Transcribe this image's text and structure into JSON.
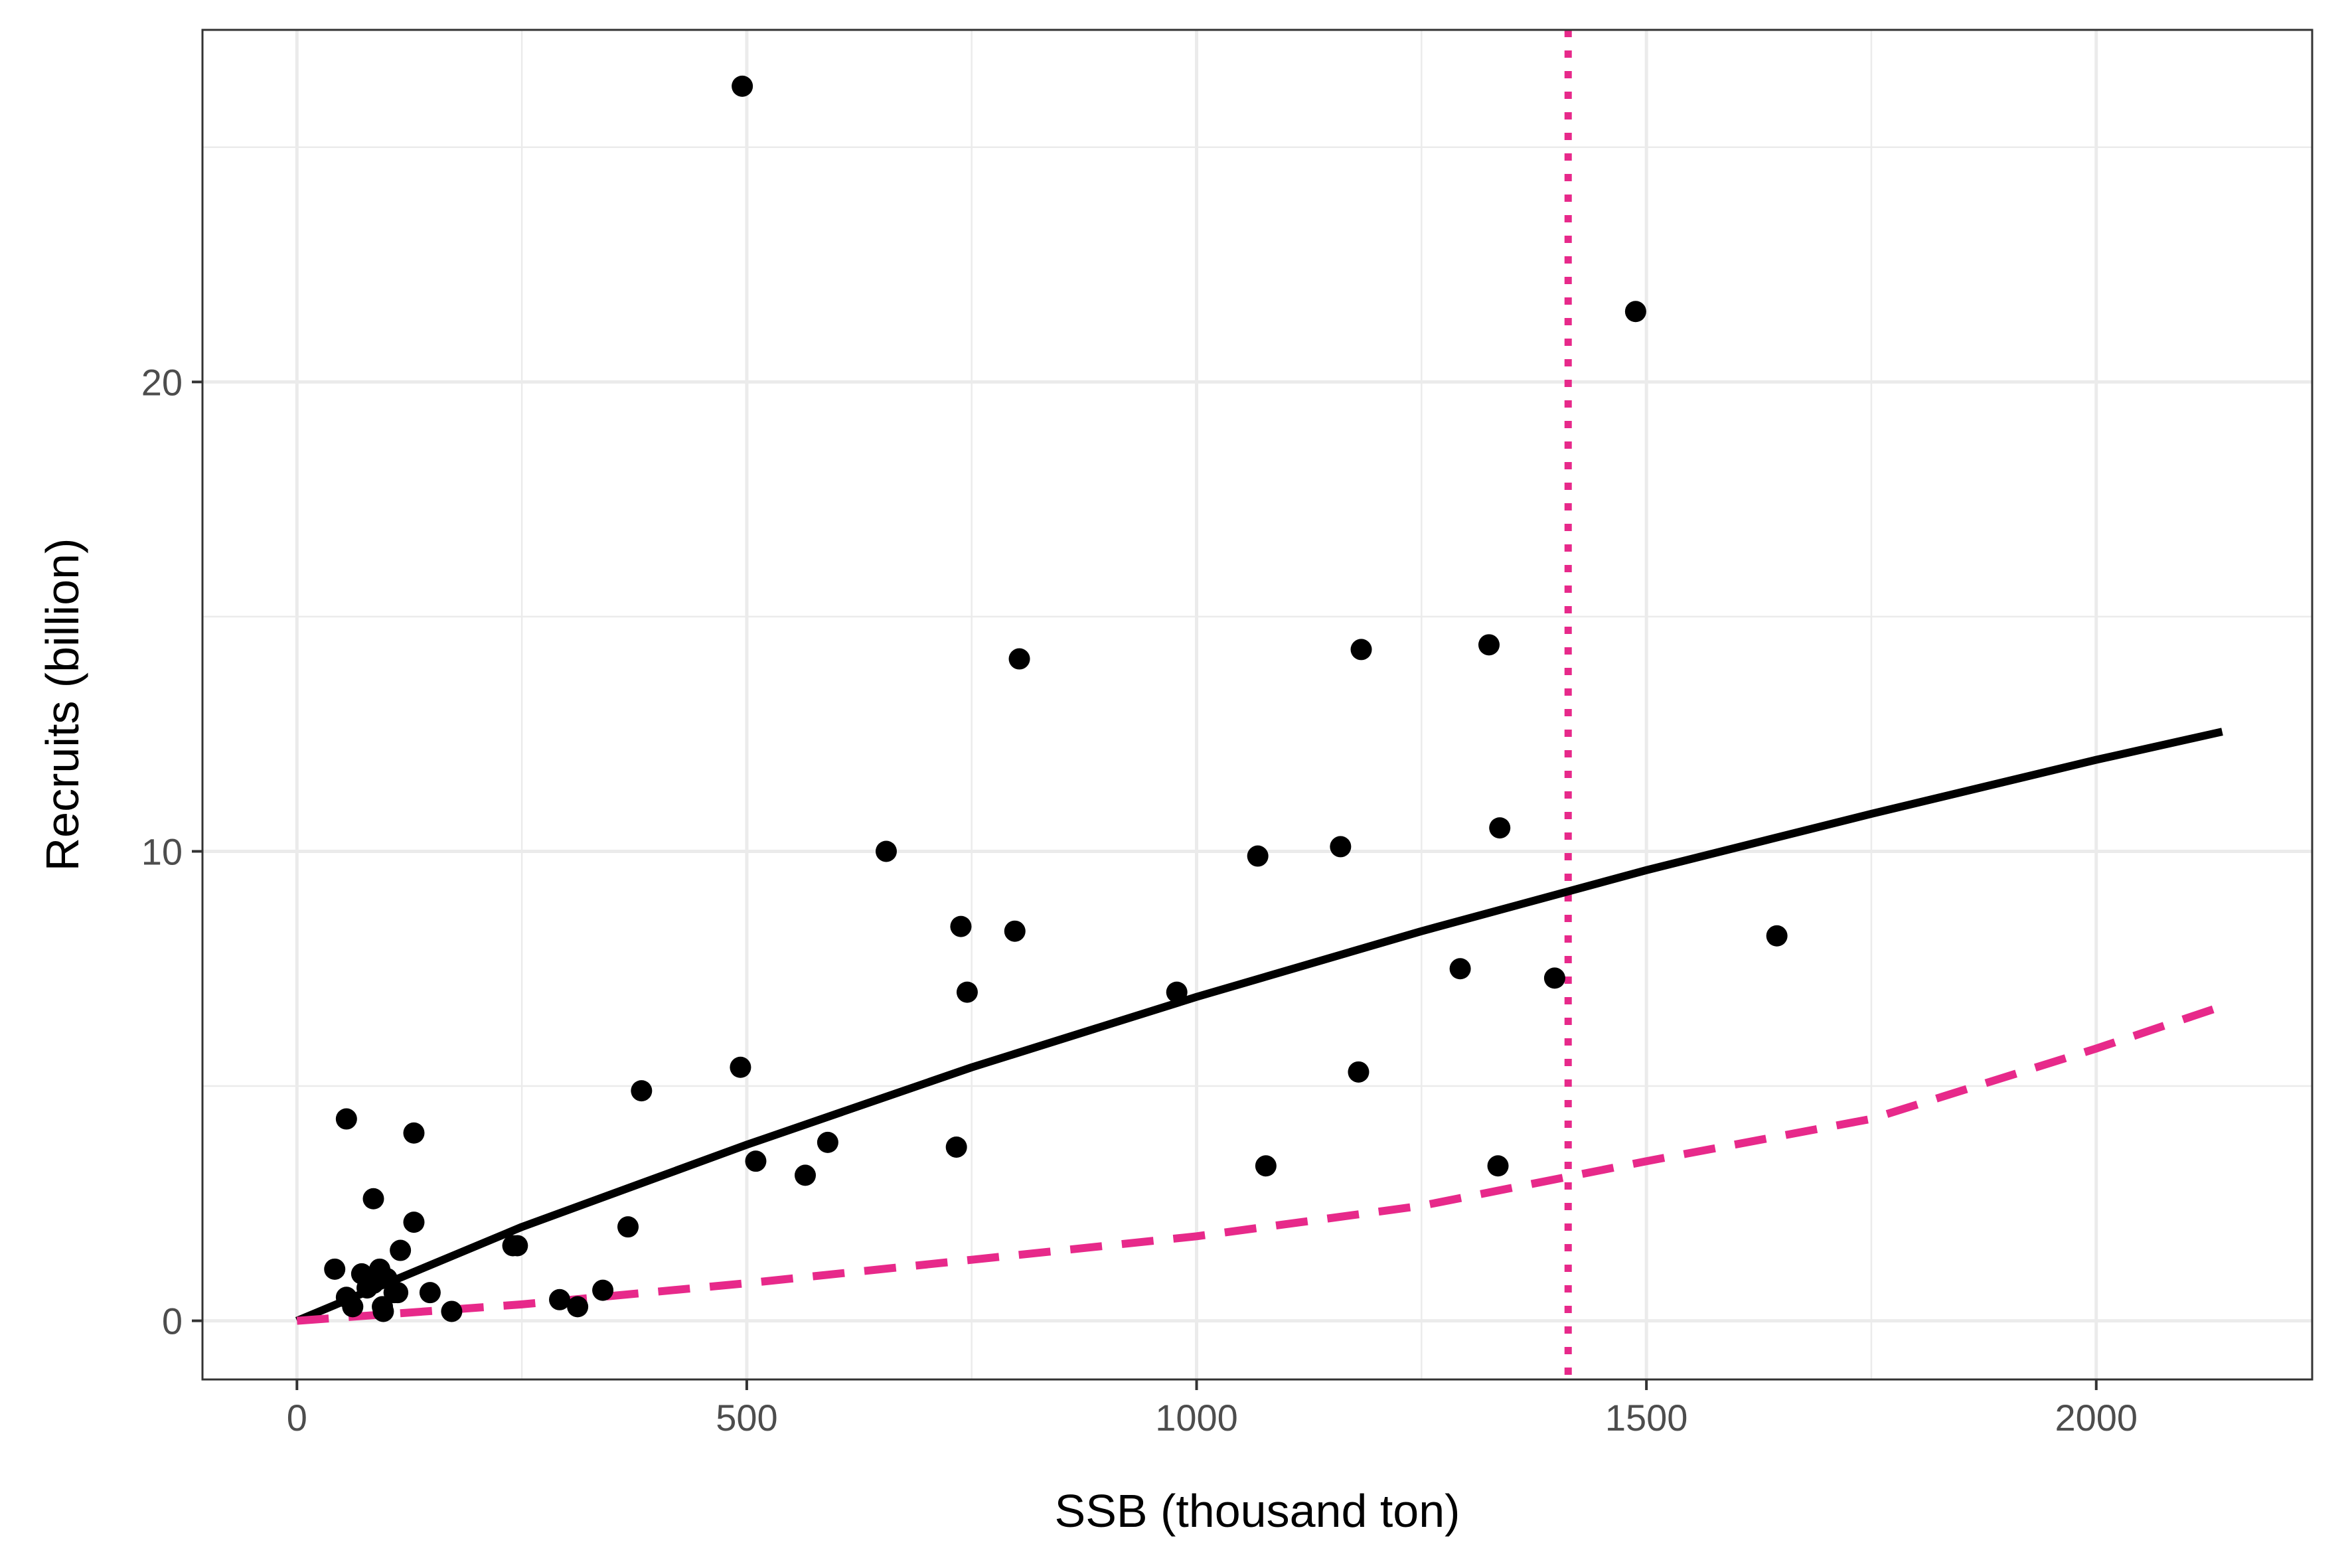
{
  "chart_data": {
    "type": "scatter",
    "title": "",
    "xlabel": "SSB (thousand ton)",
    "ylabel": "Recruits (billion)",
    "xlim": [
      -105,
      2240
    ],
    "ylim": [
      -1.25,
      27.5
    ],
    "x_ticks": [
      0,
      500,
      1000,
      1500,
      2000
    ],
    "x_tick_labels": [
      "0",
      "500",
      "1000",
      "1500",
      "2000"
    ],
    "y_ticks": [
      0,
      10,
      20
    ],
    "y_tick_labels": [
      "0",
      "10",
      "20"
    ],
    "grid": true,
    "legend": "none",
    "points": {
      "x": [
        495,
        1488,
        1325,
        1183,
        803,
        1337,
        655,
        1068,
        1160,
        738,
        798,
        978,
        745,
        1293,
        1398,
        1645,
        493,
        383,
        1180,
        733,
        590,
        510,
        565,
        1077,
        1335,
        55,
        130,
        85,
        130,
        115,
        240,
        245,
        368,
        42,
        72,
        92,
        85,
        100,
        112,
        108,
        95,
        55,
        62,
        148,
        340,
        292,
        312,
        172,
        96,
        78
      ],
      "y": [
        26.3,
        21.5,
        14.4,
        14.3,
        14.1,
        10.5,
        10.0,
        9.9,
        10.1,
        8.4,
        8.3,
        7.0,
        7.0,
        7.5,
        7.3,
        8.2,
        5.4,
        4.9,
        5.3,
        3.7,
        3.8,
        3.4,
        3.1,
        3.3,
        3.3,
        4.3,
        4.0,
        2.6,
        2.1,
        1.5,
        1.6,
        1.6,
        2.0,
        1.1,
        1.0,
        1.1,
        0.8,
        0.9,
        0.6,
        0.6,
        0.3,
        0.5,
        0.3,
        0.6,
        0.65,
        0.45,
        0.3,
        0.2,
        0.2,
        0.7
      ]
    },
    "series": [
      {
        "style": "solid",
        "color": "#000000",
        "x": [
          0,
          250,
          500,
          750,
          1000,
          1250,
          1500,
          1750,
          2000,
          2140
        ],
        "y": [
          0,
          2.0,
          3.75,
          5.4,
          6.9,
          8.3,
          9.6,
          10.8,
          11.95,
          12.55
        ]
      },
      {
        "style": "dashed",
        "color": "#e7298a",
        "x": [
          0,
          250,
          500,
          750,
          1000,
          1250,
          1500,
          1750,
          2000,
          2140
        ],
        "y": [
          0,
          0.35,
          0.8,
          1.3,
          1.8,
          2.45,
          3.4,
          4.3,
          5.8,
          6.7
        ]
      }
    ],
    "reference_lines": [
      {
        "orientation": "vertical",
        "x": 1413,
        "style": "dotted",
        "color": "#e7298a"
      }
    ]
  }
}
